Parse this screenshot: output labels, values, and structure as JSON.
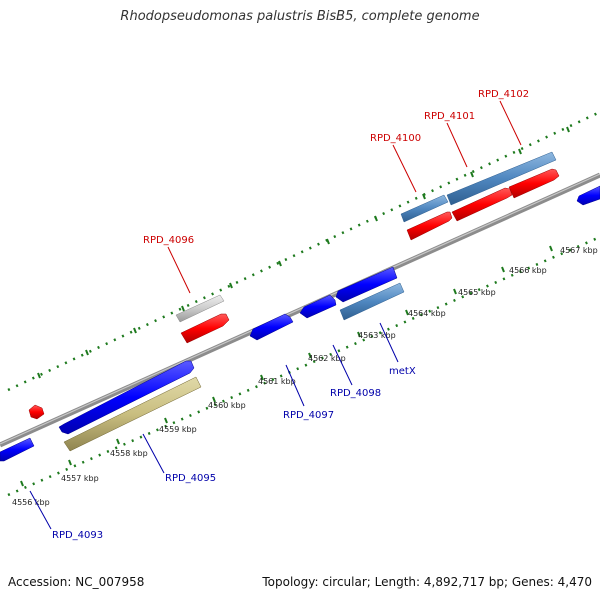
{
  "title": "Rhodopseudomonas palustris BisB5, complete genome",
  "footer": {
    "accession": "Accession: NC_007958",
    "summary": "Topology: circular; Length: 4,892,717 bp; Genes: 4,470"
  },
  "colors": {
    "backbone": "#8c8c8c",
    "tick": "#1e7a1e",
    "forward_label": "#cc0000",
    "reverse_label": "#0000aa"
  },
  "kbp_labels": [
    "4556 kbp",
    "4557 kbp",
    "4558 kbp",
    "4559 kbp",
    "4560 kbp",
    "4561 kbp",
    "4562 kbp",
    "4563 kbp",
    "4564 kbp",
    "4565 kbp",
    "4566 kbp",
    "4567 kbp"
  ],
  "gene_labels": [
    {
      "text": "RPD_4093",
      "strand": "reverse"
    },
    {
      "text": "RPD_4095",
      "strand": "reverse"
    },
    {
      "text": "RPD_4096",
      "strand": "forward"
    },
    {
      "text": "RPD_4097",
      "strand": "reverse"
    },
    {
      "text": "RPD_4098",
      "strand": "reverse"
    },
    {
      "text": "metX",
      "strand": "reverse"
    },
    {
      "text": "RPD_4100",
      "strand": "forward"
    },
    {
      "text": "RPD_4101",
      "strand": "forward"
    },
    {
      "text": "RPD_4102",
      "strand": "forward"
    }
  ]
}
